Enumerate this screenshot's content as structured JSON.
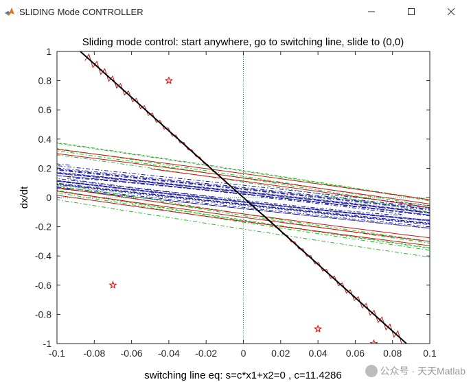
{
  "window": {
    "title": "SLIDING Mode CONTROLLER",
    "minimize_icon": "minimize-icon",
    "maximize_icon": "maximize-icon",
    "close_icon": "close-icon"
  },
  "watermark": {
    "text": "公众号 · 天天Matlab"
  },
  "chart_data": {
    "type": "line",
    "title": "Sliding mode control: start anywhere, go to switching line, slide to (0,0)",
    "xlabel": "switching line eq: s=c*x1+x2=0 , c=11.4286",
    "ylabel": "dx/dt",
    "xlim": [
      -0.1,
      0.1
    ],
    "ylim": [
      -1,
      1
    ],
    "xticks": [
      -0.1,
      -0.08,
      -0.06,
      -0.04,
      -0.02,
      0,
      0.02,
      0.04,
      0.06,
      0.08,
      0.1
    ],
    "yticks": [
      -1,
      -0.8,
      -0.6,
      -0.4,
      -0.2,
      0,
      0.2,
      0.4,
      0.6,
      0.8,
      1
    ],
    "xtick_labels": [
      "-0.1",
      "-0.08",
      "-0.06",
      "-0.04",
      "-0.02",
      "0",
      "0.02",
      "0.04",
      "0.06",
      "0.08",
      "0.1"
    ],
    "ytick_labels": [
      "-1",
      "-0.8",
      "-0.6",
      "-0.4",
      "-0.2",
      "0",
      "0.2",
      "0.4",
      "0.6",
      "0.8",
      "1"
    ],
    "switching_line_c": 11.4286,
    "start_points": [
      {
        "x": -0.04,
        "y": 0.8
      },
      {
        "x": -0.07,
        "y": -0.6
      },
      {
        "x": 0.04,
        "y": -0.9
      },
      {
        "x": 0.07,
        "y": -1.0
      }
    ],
    "colors": {
      "switching_line": "#000000",
      "trajectory": "#cc1111",
      "phase_blue": "#1a1aa6",
      "phase_green": "#22bb22",
      "marker": "#cc1111",
      "axis_zero": "#2e8b57"
    },
    "grid": false
  }
}
